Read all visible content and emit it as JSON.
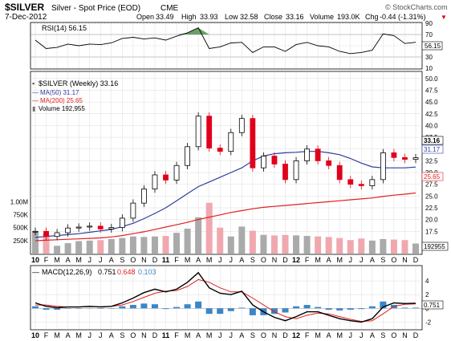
{
  "header": {
    "symbol": "$SILVER",
    "name": "Silver - Spot Price (EOD)",
    "exchange": "CME",
    "date": "7-Dec-2012",
    "watermark": "© StockCharts.com",
    "open_label": "Open",
    "open": "33.49",
    "high_label": "High",
    "high": "33.93",
    "low_label": "Low",
    "low": "32.58",
    "close_label": "Close",
    "close": "33.16",
    "volume_label": "Volume",
    "volume": "193.0K",
    "chg_label": "Chg",
    "chg": "-0.44 (-1.31%)",
    "chg_arrow": "▼"
  },
  "rsi_panel": {
    "legend": "RSI(14) 56.15",
    "ticks": [
      "90",
      "70",
      "50",
      "30",
      "10"
    ],
    "value_label": "56.15"
  },
  "price_panel": {
    "legend_main": "$SILVER (Weekly) 33.16",
    "legend_ma50": "MA(50) 31.17",
    "legend_ma200": "MA(200) 25.65",
    "legend_volume": "Volume 192,955",
    "price_ticks": [
      "50.0",
      "47.5",
      "45.0",
      "42.5",
      "40.0",
      "37.5",
      "35.0",
      "32.5",
      "30.0",
      "27.5",
      "25.0",
      "22.5",
      "20.0",
      "17.5"
    ],
    "volume_ticks": [
      "1.00M",
      "750K",
      "500K",
      "250K"
    ],
    "last_close_label": "33.16",
    "ma50_label": "31.17",
    "ma200_label": "25.65",
    "volume_label": "192955"
  },
  "macd_panel": {
    "legend_prefix": "MACD(12,26,9)",
    "macd_value": "0.751",
    "signal_value": "0.648",
    "hist_value": "0.103",
    "ticks": [
      "4",
      "2",
      "0",
      "-2"
    ],
    "value_label": "0.751"
  },
  "x_axis": {
    "labels": [
      "10",
      "F",
      "M",
      "A",
      "M",
      "J",
      "J",
      "A",
      "S",
      "O",
      "N",
      "D",
      "11",
      "F",
      "M",
      "A",
      "M",
      "J",
      "J",
      "A",
      "S",
      "O",
      "N",
      "D",
      "12",
      "F",
      "M",
      "A",
      "M",
      "J",
      "J",
      "A",
      "S",
      "O",
      "N",
      "D"
    ]
  },
  "colors": {
    "up": "#000000",
    "down": "#e0001b",
    "ma50": "#2d3e9c",
    "ma200": "#e02020",
    "volume_up": "#aaaaaa",
    "volume_down": "#f0a8ae",
    "rsi_fill": "#4f8f4f",
    "macd_hist": "#3a86c8",
    "macd_line": "#000000",
    "signal_line": "#e02020"
  },
  "chart_data": {
    "type": "line",
    "title": "$SILVER (Weekly) 33.16",
    "x": [
      "2010-01",
      "2010-02",
      "2010-03",
      "2010-04",
      "2010-05",
      "2010-06",
      "2010-07",
      "2010-08",
      "2010-09",
      "2010-10",
      "2010-11",
      "2010-12",
      "2011-01",
      "2011-02",
      "2011-03",
      "2011-04",
      "2011-05",
      "2011-06",
      "2011-07",
      "2011-08",
      "2011-09",
      "2011-10",
      "2011-11",
      "2011-12",
      "2012-01",
      "2012-02",
      "2012-03",
      "2012-04",
      "2012-05",
      "2012-06",
      "2012-07",
      "2012-08",
      "2012-09",
      "2012-10",
      "2012-11",
      "2012-12"
    ],
    "ylim": [
      15.5,
      51
    ],
    "series": [
      {
        "name": "$SILVER (Weekly) 33.16",
        "values": [
          17.5,
          16.4,
          17.2,
          18.2,
          18.4,
          18.6,
          18.0,
          18.3,
          20.3,
          23.5,
          26.5,
          29.5,
          28.4,
          31.5,
          35.5,
          42.0,
          35.2,
          34.5,
          38.5,
          41.5,
          31.0,
          33.5,
          31.8,
          28.5,
          32.5,
          35.0,
          32.5,
          31.5,
          28.5,
          27.5,
          27.2,
          28.5,
          34.2,
          33.2,
          32.8,
          33.16
        ]
      },
      {
        "name": "MA(50) 31.17",
        "values": [
          16.2,
          16.4,
          16.6,
          16.8,
          17.0,
          17.3,
          17.6,
          17.9,
          18.5,
          19.2,
          20.2,
          21.3,
          22.5,
          24.0,
          25.5,
          27.0,
          28.0,
          29.0,
          30.0,
          31.0,
          32.5,
          33.5,
          34.0,
          34.2,
          34.3,
          34.5,
          34.5,
          34.2,
          33.8,
          33.0,
          32.0,
          31.2,
          31.0,
          31.0,
          31.0,
          31.17
        ]
      },
      {
        "name": "MA(200) 25.65",
        "values": [
          15.5,
          15.6,
          15.7,
          15.8,
          15.9,
          16.0,
          16.1,
          16.3,
          16.6,
          17.0,
          17.4,
          17.9,
          18.4,
          18.9,
          19.4,
          20.0,
          20.5,
          21.0,
          21.5,
          21.9,
          22.3,
          22.6,
          22.8,
          23.0,
          23.2,
          23.4,
          23.6,
          23.8,
          24.0,
          24.2,
          24.4,
          24.6,
          24.9,
          25.2,
          25.4,
          25.65
        ]
      }
    ],
    "volume_values": [
      430000,
      380000,
      150000,
      200000,
      240000,
      250000,
      260000,
      280000,
      300000,
      330000,
      320000,
      330000,
      340000,
      400000,
      480000,
      700000,
      980000,
      500000,
      330000,
      520000,
      440000,
      360000,
      350000,
      360000,
      350000,
      340000,
      330000,
      320000,
      300000,
      260000,
      290000,
      250000,
      280000,
      270000,
      260000,
      192955
    ],
    "volume_ylim": [
      0,
      1100000
    ],
    "rsi_values": [
      60,
      45,
      47,
      53,
      50,
      53,
      52,
      55,
      63,
      65,
      62,
      64,
      60,
      67,
      73,
      82,
      45,
      48,
      55,
      56,
      38,
      48,
      48,
      40,
      52,
      56,
      50,
      48,
      40,
      36,
      38,
      42,
      71,
      68,
      54,
      56.15
    ],
    "rsi_ylim": [
      10,
      90
    ],
    "macd_values": [
      0.8,
      0.3,
      0.1,
      0.2,
      0.2,
      0.3,
      0.2,
      0.3,
      0.8,
      1.5,
      2.3,
      2.8,
      2.4,
      2.8,
      3.8,
      5.2,
      3.0,
      2.2,
      2.0,
      2.5,
      0.5,
      -0.5,
      -1.3,
      -1.8,
      -1.2,
      -0.5,
      -0.5,
      -1.0,
      -1.5,
      -1.8,
      -2.0,
      -1.5,
      0.2,
      0.8,
      0.7,
      0.751
    ],
    "signal_values": [
      0.5,
      0.5,
      0.3,
      0.2,
      0.2,
      0.25,
      0.25,
      0.28,
      0.5,
      1.0,
      1.6,
      2.2,
      2.5,
      2.6,
      3.2,
      4.2,
      3.8,
      3.0,
      2.4,
      2.4,
      1.5,
      0.5,
      -0.5,
      -1.2,
      -1.5,
      -1.0,
      -0.7,
      -0.8,
      -1.2,
      -1.6,
      -1.9,
      -1.8,
      -0.8,
      0.3,
      0.6,
      0.648
    ],
    "hist_values": [
      0.3,
      -0.2,
      -0.2,
      0.0,
      0.0,
      0.05,
      -0.05,
      0.02,
      0.3,
      0.5,
      0.7,
      0.6,
      -0.1,
      0.2,
      0.6,
      1.0,
      -0.8,
      -0.8,
      -0.4,
      0.1,
      -1.0,
      -1.0,
      -0.8,
      -0.6,
      0.3,
      0.5,
      0.2,
      -0.2,
      -0.3,
      -0.2,
      -0.1,
      0.3,
      1.0,
      0.5,
      0.1,
      0.103
    ],
    "macd_ylim": [
      -3,
      6
    ]
  }
}
